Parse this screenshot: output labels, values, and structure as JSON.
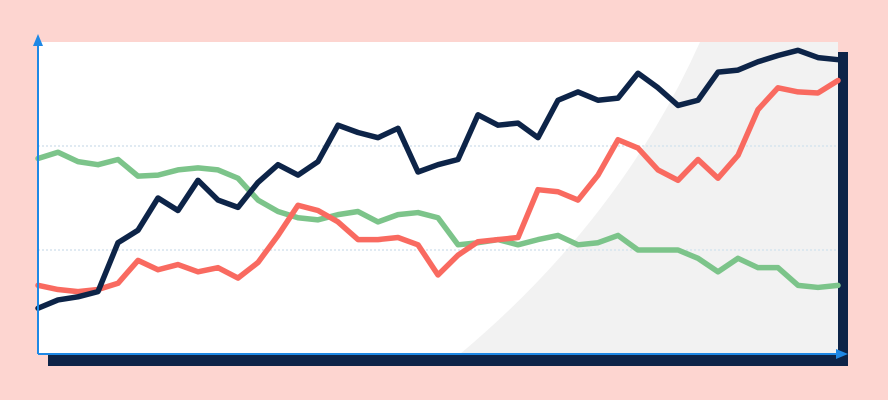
{
  "chart_data": {
    "type": "line",
    "x": [
      0,
      1,
      2,
      3,
      4,
      5,
      6,
      7,
      8,
      9,
      10,
      11,
      12,
      13,
      14,
      15,
      16,
      17,
      18,
      19,
      20,
      21,
      22,
      23,
      24,
      25,
      26,
      27,
      28,
      29,
      30,
      31,
      32,
      33,
      34,
      35,
      36,
      37,
      38,
      39,
      40
    ],
    "xlim": [
      0,
      40
    ],
    "ylim": [
      0,
      3
    ],
    "yticks": [
      1,
      2
    ],
    "grid": true,
    "series": [
      {
        "color": "#7cc48a",
        "values": [
          1.88,
          1.94,
          1.85,
          1.82,
          1.87,
          1.71,
          1.72,
          1.77,
          1.79,
          1.77,
          1.69,
          1.48,
          1.37,
          1.31,
          1.29,
          1.34,
          1.37,
          1.27,
          1.34,
          1.36,
          1.31,
          1.05,
          1.07,
          1.1,
          1.05,
          1.1,
          1.14,
          1.05,
          1.07,
          1.14,
          1.0,
          1.0,
          1.0,
          0.92,
          0.79,
          0.92,
          0.83,
          0.83,
          0.66,
          0.64,
          0.66
        ]
      },
      {
        "color": "#f96a60",
        "values": [
          0.66,
          0.62,
          0.6,
          0.62,
          0.68,
          0.9,
          0.81,
          0.86,
          0.79,
          0.83,
          0.73,
          0.88,
          1.14,
          1.43,
          1.38,
          1.27,
          1.1,
          1.1,
          1.12,
          1.05,
          0.76,
          0.95,
          1.08,
          1.1,
          1.12,
          1.58,
          1.56,
          1.48,
          1.72,
          2.06,
          1.98,
          1.77,
          1.67,
          1.87,
          1.69,
          1.91,
          2.35,
          2.56,
          2.52,
          2.51,
          2.63
        ]
      },
      {
        "color": "#0d2448",
        "values": [
          0.44,
          0.52,
          0.55,
          0.6,
          1.07,
          1.19,
          1.5,
          1.38,
          1.67,
          1.48,
          1.41,
          1.65,
          1.82,
          1.72,
          1.85,
          2.2,
          2.13,
          2.08,
          2.17,
          1.75,
          1.82,
          1.87,
          2.3,
          2.2,
          2.22,
          2.08,
          2.44,
          2.52,
          2.44,
          2.46,
          2.7,
          2.56,
          2.39,
          2.44,
          2.71,
          2.73,
          2.81,
          2.87,
          2.92,
          2.85,
          2.83
        ]
      }
    ]
  }
}
